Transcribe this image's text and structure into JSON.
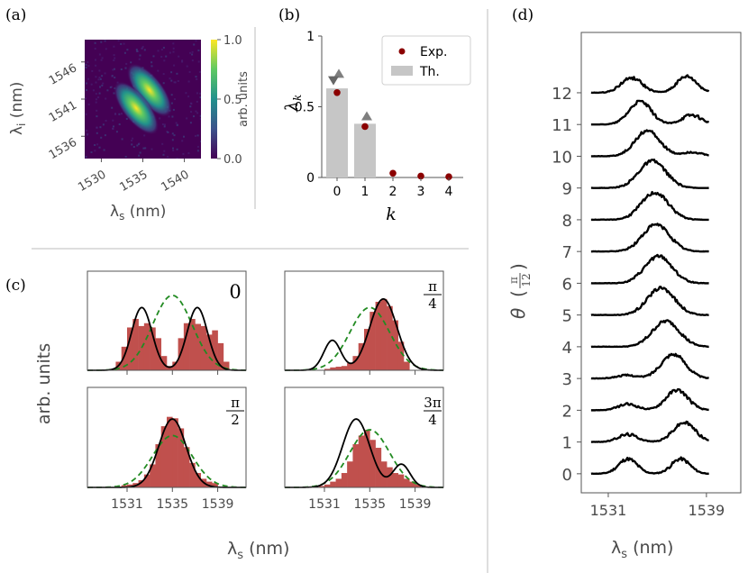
{
  "colors": {
    "hist": "#c0504d",
    "theory": "#000000",
    "dashed": "#228b22",
    "dot": "#8b0000",
    "bar": "#c6c6c6",
    "tri": "#7f7f7f",
    "frame": "#555555"
  },
  "chart_data": [
    {
      "id": "a",
      "type": "heatmap",
      "panel_label": "(a)",
      "xlabel_sym": "λ",
      "xlabel_sub": "s",
      "xlabel_unit": " (nm)",
      "ylabel_sym": "λ",
      "ylabel_sub": "i",
      "ylabel_unit": " (nm)",
      "xticks": [
        "1530",
        "1535",
        "1540"
      ],
      "yticks": [
        "1546",
        "1541",
        "1536"
      ],
      "xlim": [
        1528,
        1542
      ],
      "ylim": [
        1533,
        1549
      ],
      "colorbar_label": "arb. units",
      "colorbar_ticks": [
        "1.0",
        "0.5",
        "0.0"
      ],
      "colorbar_range": [
        0,
        1
      ],
      "lobes": [
        {
          "x": 1535.8,
          "y": 1542.2
        },
        {
          "x": 1534.2,
          "y": 1539.8
        }
      ]
    },
    {
      "id": "b",
      "type": "bar",
      "panel_label": "(b)",
      "xlabel": "k",
      "ylabel_sym": "λ",
      "ylabel_sub": "k",
      "categories": [
        "0",
        "1",
        "2",
        "3",
        "4"
      ],
      "ylim": [
        0,
        1
      ],
      "yticks": [
        "1",
        "0.5",
        "0"
      ],
      "series": [
        {
          "name": "Th.",
          "kind": "bar",
          "values": [
            0.63,
            0.38,
            0.0,
            0.0,
            0.0
          ]
        },
        {
          "name": "Exp.",
          "kind": "dot",
          "values": [
            0.6,
            0.36,
            0.03,
            0.01,
            0.005
          ]
        },
        {
          "name": "upper",
          "kind": "triangle-up",
          "values": [
            0.73,
            0.43,
            null,
            null,
            null
          ]
        },
        {
          "name": "lower",
          "kind": "triangle-down",
          "values": [
            0.69,
            null,
            null,
            null,
            null
          ]
        },
        {
          "name": "ref",
          "kind": "hline",
          "values": [
            0.72,
            0.42,
            null,
            null,
            null
          ]
        }
      ],
      "legend": [
        {
          "label": "Exp.",
          "kind": "dot"
        },
        {
          "label": "Th.",
          "kind": "bar"
        }
      ]
    },
    {
      "id": "c",
      "type": "histogram",
      "panel_label": "(c)",
      "ylabel": "arb. units",
      "xlabel_sym": "λ",
      "xlabel_sub": "s",
      "xlabel_unit": " (nm)",
      "xlim": [
        1527.5,
        1541.5
      ],
      "xticks": [
        "1531",
        "1535",
        "1539"
      ],
      "bin_width": 0.5,
      "subplots": [
        {
          "angle_num": "0",
          "angle_den": "",
          "bin_start": 1529.5,
          "hist": [
            0.02,
            0.12,
            0.33,
            0.6,
            0.72,
            0.62,
            0.66,
            0.6,
            0.45,
            0.2,
            0.06,
            0.12,
            0.45,
            0.66,
            0.72,
            0.65,
            0.62,
            0.5,
            0.56,
            0.38,
            0.12
          ],
          "theory": [
            {
              "mu": 1532.3,
              "sigma": 0.9,
              "amp": 0.88
            },
            {
              "mu": 1537.2,
              "sigma": 0.9,
              "amp": 0.88
            }
          ],
          "dashed": {
            "mu": 1535.0,
            "sigma": 1.75,
            "amp": 1.05
          }
        },
        {
          "angle_num": "π",
          "angle_den": "4",
          "bin_start": 1531,
          "hist": [
            0.02,
            0.04,
            0.05,
            0.06,
            0.1,
            0.2,
            0.38,
            0.58,
            0.82,
            0.96,
            1.0,
            0.9,
            0.7,
            0.4,
            0.12
          ],
          "theory": [
            {
              "mu": 1531.7,
              "sigma": 0.75,
              "amp": 0.42
            },
            {
              "mu": 1536.2,
              "sigma": 1.2,
              "amp": 1.0
            }
          ],
          "dashed": {
            "mu": 1535.0,
            "sigma": 1.75,
            "amp": 0.88
          }
        },
        {
          "angle_num": "π",
          "angle_den": "2",
          "bin_start": 1530.5,
          "hist": [
            0.03,
            0.04,
            0.06,
            0.1,
            0.18,
            0.32,
            0.6,
            0.85,
            0.98,
            0.96,
            0.82,
            0.56,
            0.34,
            0.2,
            0.12,
            0.08,
            0.06
          ],
          "theory": [
            {
              "mu": 1535.0,
              "sigma": 1.2,
              "amp": 0.95
            }
          ],
          "dashed": {
            "mu": 1535.0,
            "sigma": 1.75,
            "amp": 0.72
          }
        },
        {
          "angle_num": "3π",
          "angle_den": "4",
          "bin_start": 1530.5,
          "hist": [
            0.02,
            0.04,
            0.08,
            0.12,
            0.2,
            0.36,
            0.6,
            0.72,
            0.8,
            0.66,
            0.55,
            0.36,
            0.28,
            0.2,
            0.18,
            0.12,
            0.08,
            0.04
          ],
          "theory": [
            {
              "mu": 1533.8,
              "sigma": 1.2,
              "amp": 0.95
            },
            {
              "mu": 1537.8,
              "sigma": 0.75,
              "amp": 0.32
            }
          ],
          "dashed": {
            "mu": 1535.0,
            "sigma": 1.75,
            "amp": 0.8
          }
        }
      ]
    },
    {
      "id": "d",
      "type": "line",
      "panel_label": "(d)",
      "ylabel_sym": "θ",
      "ylabel_frac_num": "π",
      "ylabel_frac_den": "12",
      "xlabel_sym": "λ",
      "xlabel_sub": "s",
      "xlabel_unit": " (nm)",
      "xlim": [
        1528.8,
        1541.8
      ],
      "xticks": [
        "1531",
        "1539"
      ],
      "ylim": [
        -0.6,
        13.9
      ],
      "yticks": [
        "0",
        "1",
        "2",
        "3",
        "4",
        "5",
        "6",
        "7",
        "8",
        "9",
        "10",
        "11",
        "12"
      ],
      "trace_height": 0.85,
      "series": [
        {
          "name": "0",
          "peaks": [
            {
              "mu": 1532.6,
              "sigma": 0.75,
              "amp": 0.55
            },
            {
              "mu": 1536.9,
              "sigma": 0.75,
              "amp": 0.55
            }
          ]
        },
        {
          "name": "1",
          "peaks": [
            {
              "mu": 1532.6,
              "sigma": 0.8,
              "amp": 0.28
            },
            {
              "mu": 1537.2,
              "sigma": 0.9,
              "amp": 0.72
            }
          ]
        },
        {
          "name": "2",
          "peaks": [
            {
              "mu": 1532.6,
              "sigma": 0.8,
              "amp": 0.22
            },
            {
              "mu": 1536.6,
              "sigma": 0.9,
              "amp": 0.75
            }
          ]
        },
        {
          "name": "3",
          "peaks": [
            {
              "mu": 1532.5,
              "sigma": 0.8,
              "amp": 0.12
            },
            {
              "mu": 1536.3,
              "sigma": 1.0,
              "amp": 0.9
            }
          ]
        },
        {
          "name": "4",
          "peaks": [
            {
              "mu": 1535.7,
              "sigma": 1.1,
              "amp": 0.95
            }
          ]
        },
        {
          "name": "5",
          "peaks": [
            {
              "mu": 1535.3,
              "sigma": 1.1,
              "amp": 1.0
            }
          ]
        },
        {
          "name": "6",
          "peaks": [
            {
              "mu": 1535.1,
              "sigma": 1.1,
              "amp": 1.0
            }
          ]
        },
        {
          "name": "7",
          "peaks": [
            {
              "mu": 1534.9,
              "sigma": 1.1,
              "amp": 1.0
            }
          ]
        },
        {
          "name": "8",
          "peaks": [
            {
              "mu": 1534.8,
              "sigma": 1.1,
              "amp": 1.0
            }
          ]
        },
        {
          "name": "9",
          "peaks": [
            {
              "mu": 1534.6,
              "sigma": 1.1,
              "amp": 1.0
            }
          ]
        },
        {
          "name": "10",
          "peaks": [
            {
              "mu": 1534.2,
              "sigma": 1.0,
              "amp": 0.95
            },
            {
              "mu": 1537.8,
              "sigma": 0.8,
              "amp": 0.15
            }
          ]
        },
        {
          "name": "11",
          "peaks": [
            {
              "mu": 1533.6,
              "sigma": 0.9,
              "amp": 0.85
            },
            {
              "mu": 1537.8,
              "sigma": 0.8,
              "amp": 0.35
            }
          ]
        },
        {
          "name": "12",
          "peaks": [
            {
              "mu": 1532.9,
              "sigma": 0.85,
              "amp": 0.55
            },
            {
              "mu": 1537.4,
              "sigma": 0.8,
              "amp": 0.6
            }
          ]
        }
      ]
    }
  ]
}
